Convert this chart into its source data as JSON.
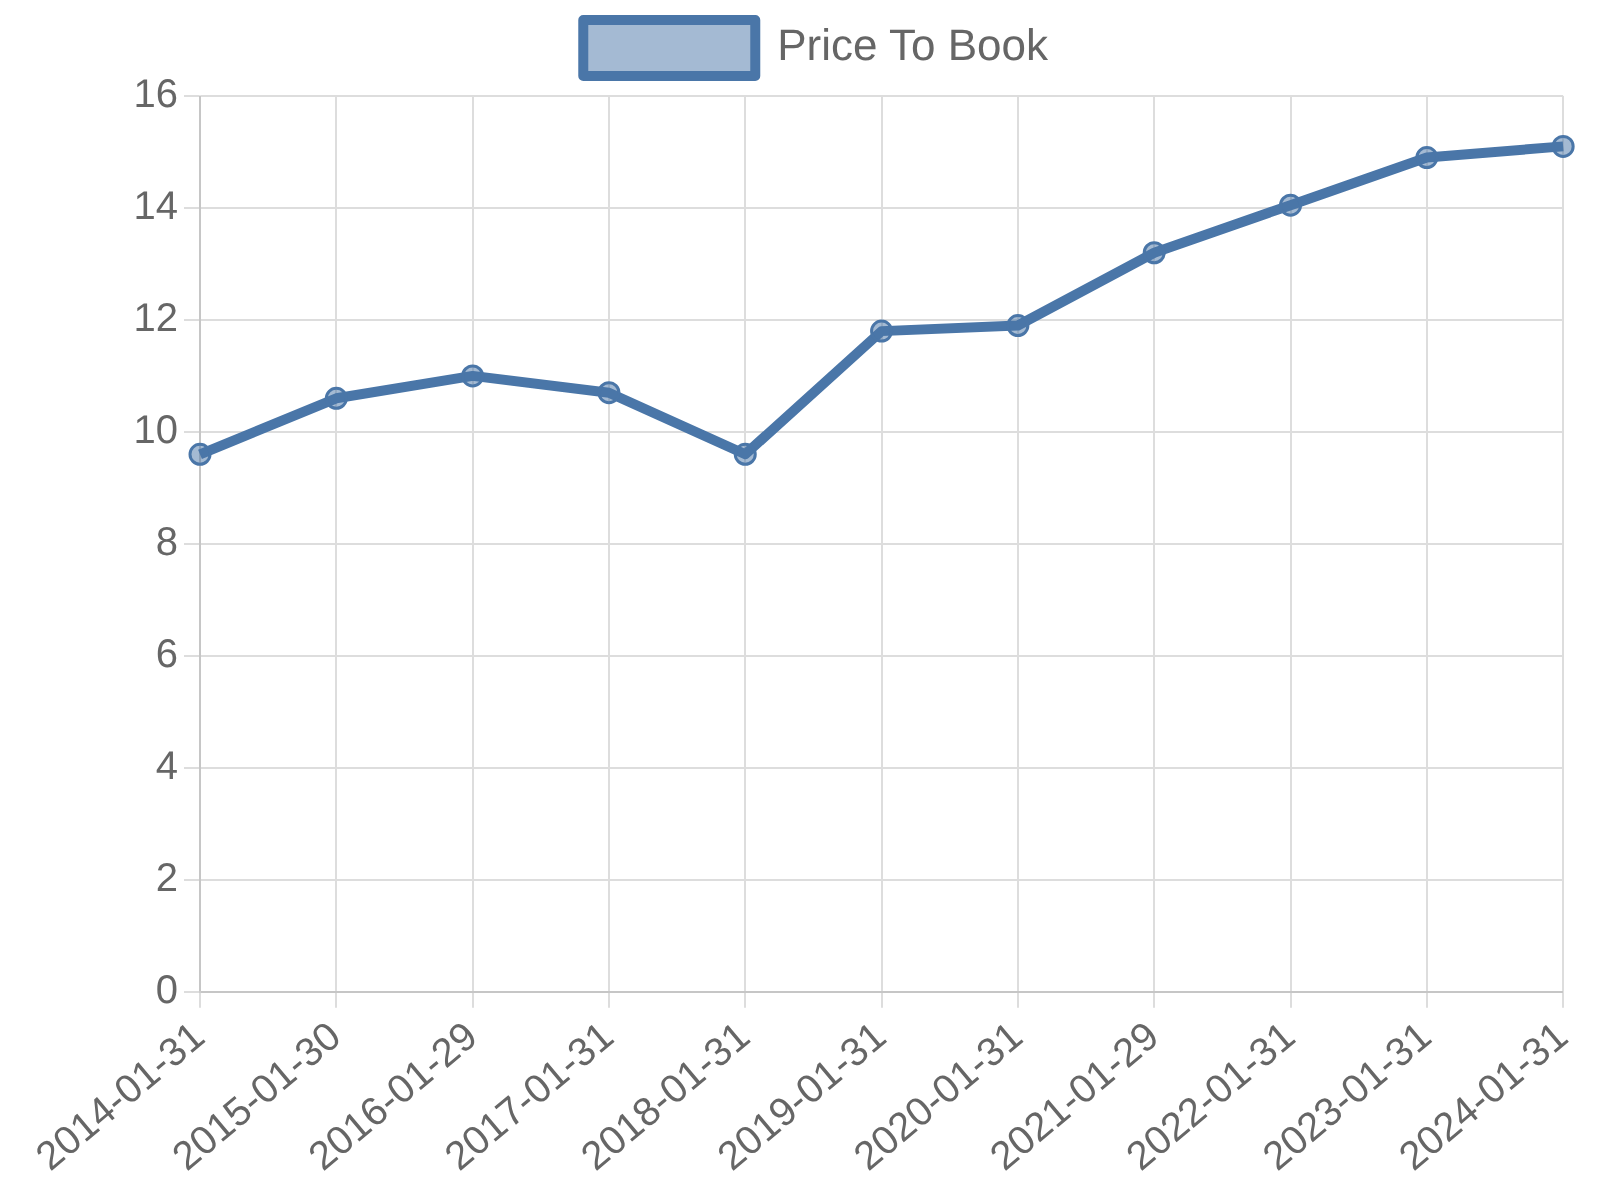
{
  "chart_data": {
    "type": "line",
    "categories": [
      "2014-01-31",
      "2015-01-30",
      "2016-01-29",
      "2017-01-31",
      "2018-01-31",
      "2019-01-31",
      "2020-01-31",
      "2021-01-29",
      "2022-01-31",
      "2023-01-31",
      "2024-01-31"
    ],
    "series": [
      {
        "name": "Price To Book",
        "color": "#4a76a8",
        "values": [
          9.6,
          10.6,
          11.0,
          10.7,
          9.6,
          11.8,
          11.9,
          13.2,
          14.05,
          14.9,
          15.1
        ]
      }
    ],
    "ylim": [
      0,
      16
    ],
    "yticks": [
      0,
      2,
      4,
      6,
      8,
      10,
      12,
      14,
      16
    ],
    "grid": true,
    "legend": "top",
    "marker": "circle",
    "line_style": "solid"
  }
}
